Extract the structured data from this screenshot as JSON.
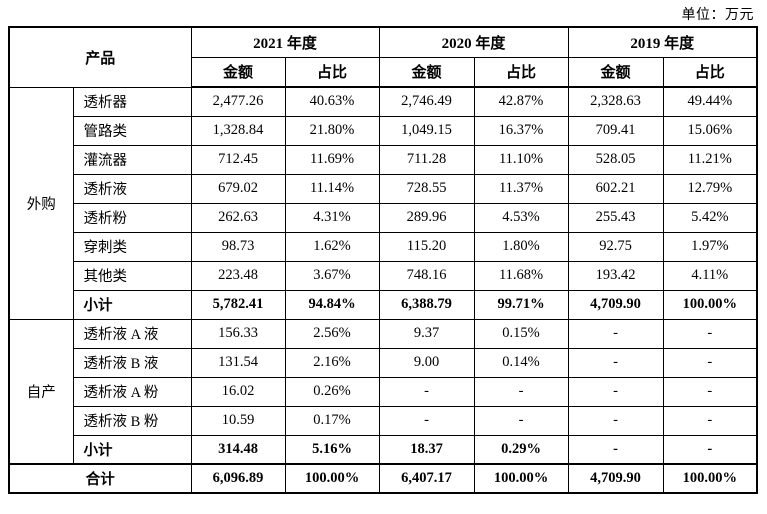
{
  "unit_label": "单位：万元",
  "table": {
    "header": {
      "product": "产品",
      "years": [
        "2021 年度",
        "2020 年度",
        "2019 年度"
      ],
      "sub": [
        "金额",
        "占比"
      ]
    },
    "groups": [
      {
        "name": "外购",
        "rows": [
          {
            "label": "透析器",
            "bold": false,
            "values": [
              "2,477.26",
              "40.63%",
              "2,746.49",
              "42.87%",
              "2,328.63",
              "49.44%"
            ]
          },
          {
            "label": "管路类",
            "bold": false,
            "values": [
              "1,328.84",
              "21.80%",
              "1,049.15",
              "16.37%",
              "709.41",
              "15.06%"
            ]
          },
          {
            "label": "灌流器",
            "bold": false,
            "values": [
              "712.45",
              "11.69%",
              "711.28",
              "11.10%",
              "528.05",
              "11.21%"
            ]
          },
          {
            "label": "透析液",
            "bold": false,
            "values": [
              "679.02",
              "11.14%",
              "728.55",
              "11.37%",
              "602.21",
              "12.79%"
            ]
          },
          {
            "label": "透析粉",
            "bold": false,
            "values": [
              "262.63",
              "4.31%",
              "289.96",
              "4.53%",
              "255.43",
              "5.42%"
            ]
          },
          {
            "label": "穿刺类",
            "bold": false,
            "values": [
              "98.73",
              "1.62%",
              "115.20",
              "1.80%",
              "92.75",
              "1.97%"
            ]
          },
          {
            "label": "其他类",
            "bold": false,
            "values": [
              "223.48",
              "3.67%",
              "748.16",
              "11.68%",
              "193.42",
              "4.11%"
            ]
          },
          {
            "label": "小计",
            "bold": true,
            "values": [
              "5,782.41",
              "94.84%",
              "6,388.79",
              "99.71%",
              "4,709.90",
              "100.00%"
            ]
          }
        ]
      },
      {
        "name": "自产",
        "rows": [
          {
            "label": "透析液 A 液",
            "bold": false,
            "values": [
              "156.33",
              "2.56%",
              "9.37",
              "0.15%",
              "-",
              "-"
            ]
          },
          {
            "label": "透析液 B 液",
            "bold": false,
            "values": [
              "131.54",
              "2.16%",
              "9.00",
              "0.14%",
              "-",
              "-"
            ]
          },
          {
            "label": "透析液 A 粉",
            "bold": false,
            "values": [
              "16.02",
              "0.26%",
              "-",
              "-",
              "-",
              "-"
            ]
          },
          {
            "label": "透析液 B 粉",
            "bold": false,
            "values": [
              "10.59",
              "0.17%",
              "-",
              "-",
              "-",
              "-"
            ]
          },
          {
            "label": "小计",
            "bold": true,
            "values": [
              "314.48",
              "5.16%",
              "18.37",
              "0.29%",
              "-",
              "-"
            ]
          }
        ]
      }
    ],
    "total": {
      "label": "合计",
      "values": [
        "6,096.89",
        "100.00%",
        "6,407.17",
        "100.00%",
        "4,709.90",
        "100.00%"
      ]
    }
  }
}
